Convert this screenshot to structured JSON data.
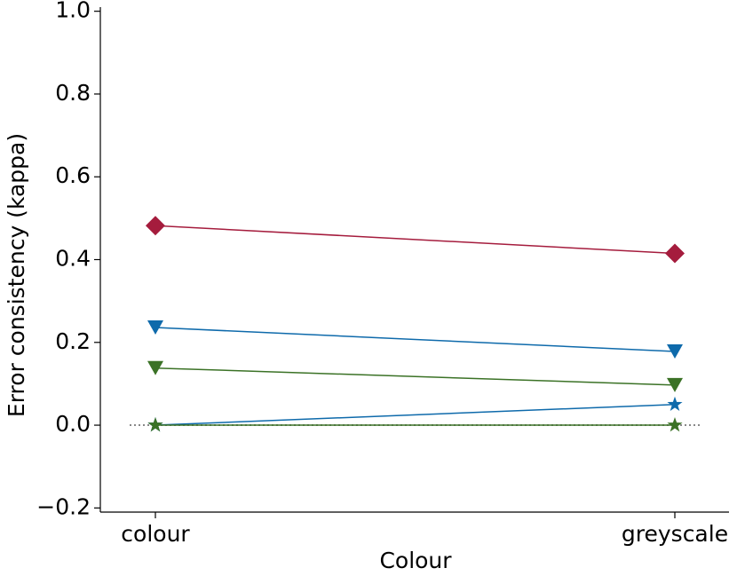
{
  "chart_data": {
    "type": "line",
    "x_label": "Colour",
    "y_label": "Error consistency (kappa)",
    "categories": [
      "colour",
      "greyscale"
    ],
    "series": [
      {
        "color": "#a51c3d",
        "marker": "diamond",
        "values": [
          0.482,
          0.415
        ]
      },
      {
        "color": "#0e6aab",
        "marker": "triangle-down",
        "values": [
          0.236,
          0.178
        ]
      },
      {
        "color": "#3b7226",
        "marker": "triangle-down",
        "values": [
          0.138,
          0.097
        ]
      },
      {
        "color": "#0e6aab",
        "marker": "star",
        "values": [
          0.0,
          0.05
        ]
      },
      {
        "color": "#3b7226",
        "marker": "star",
        "values": [
          0.0,
          0.0
        ]
      }
    ],
    "hline": 0,
    "ylim": [
      -0.21,
      1.01
    ],
    "yticks": [
      {
        "value": -0.2,
        "label": "−0.2"
      },
      {
        "value": 0,
        "label": "0.0"
      },
      0.2,
      0.4,
      0.6,
      0.8,
      {
        "value": 1.0,
        "label": "1.0"
      }
    ]
  }
}
